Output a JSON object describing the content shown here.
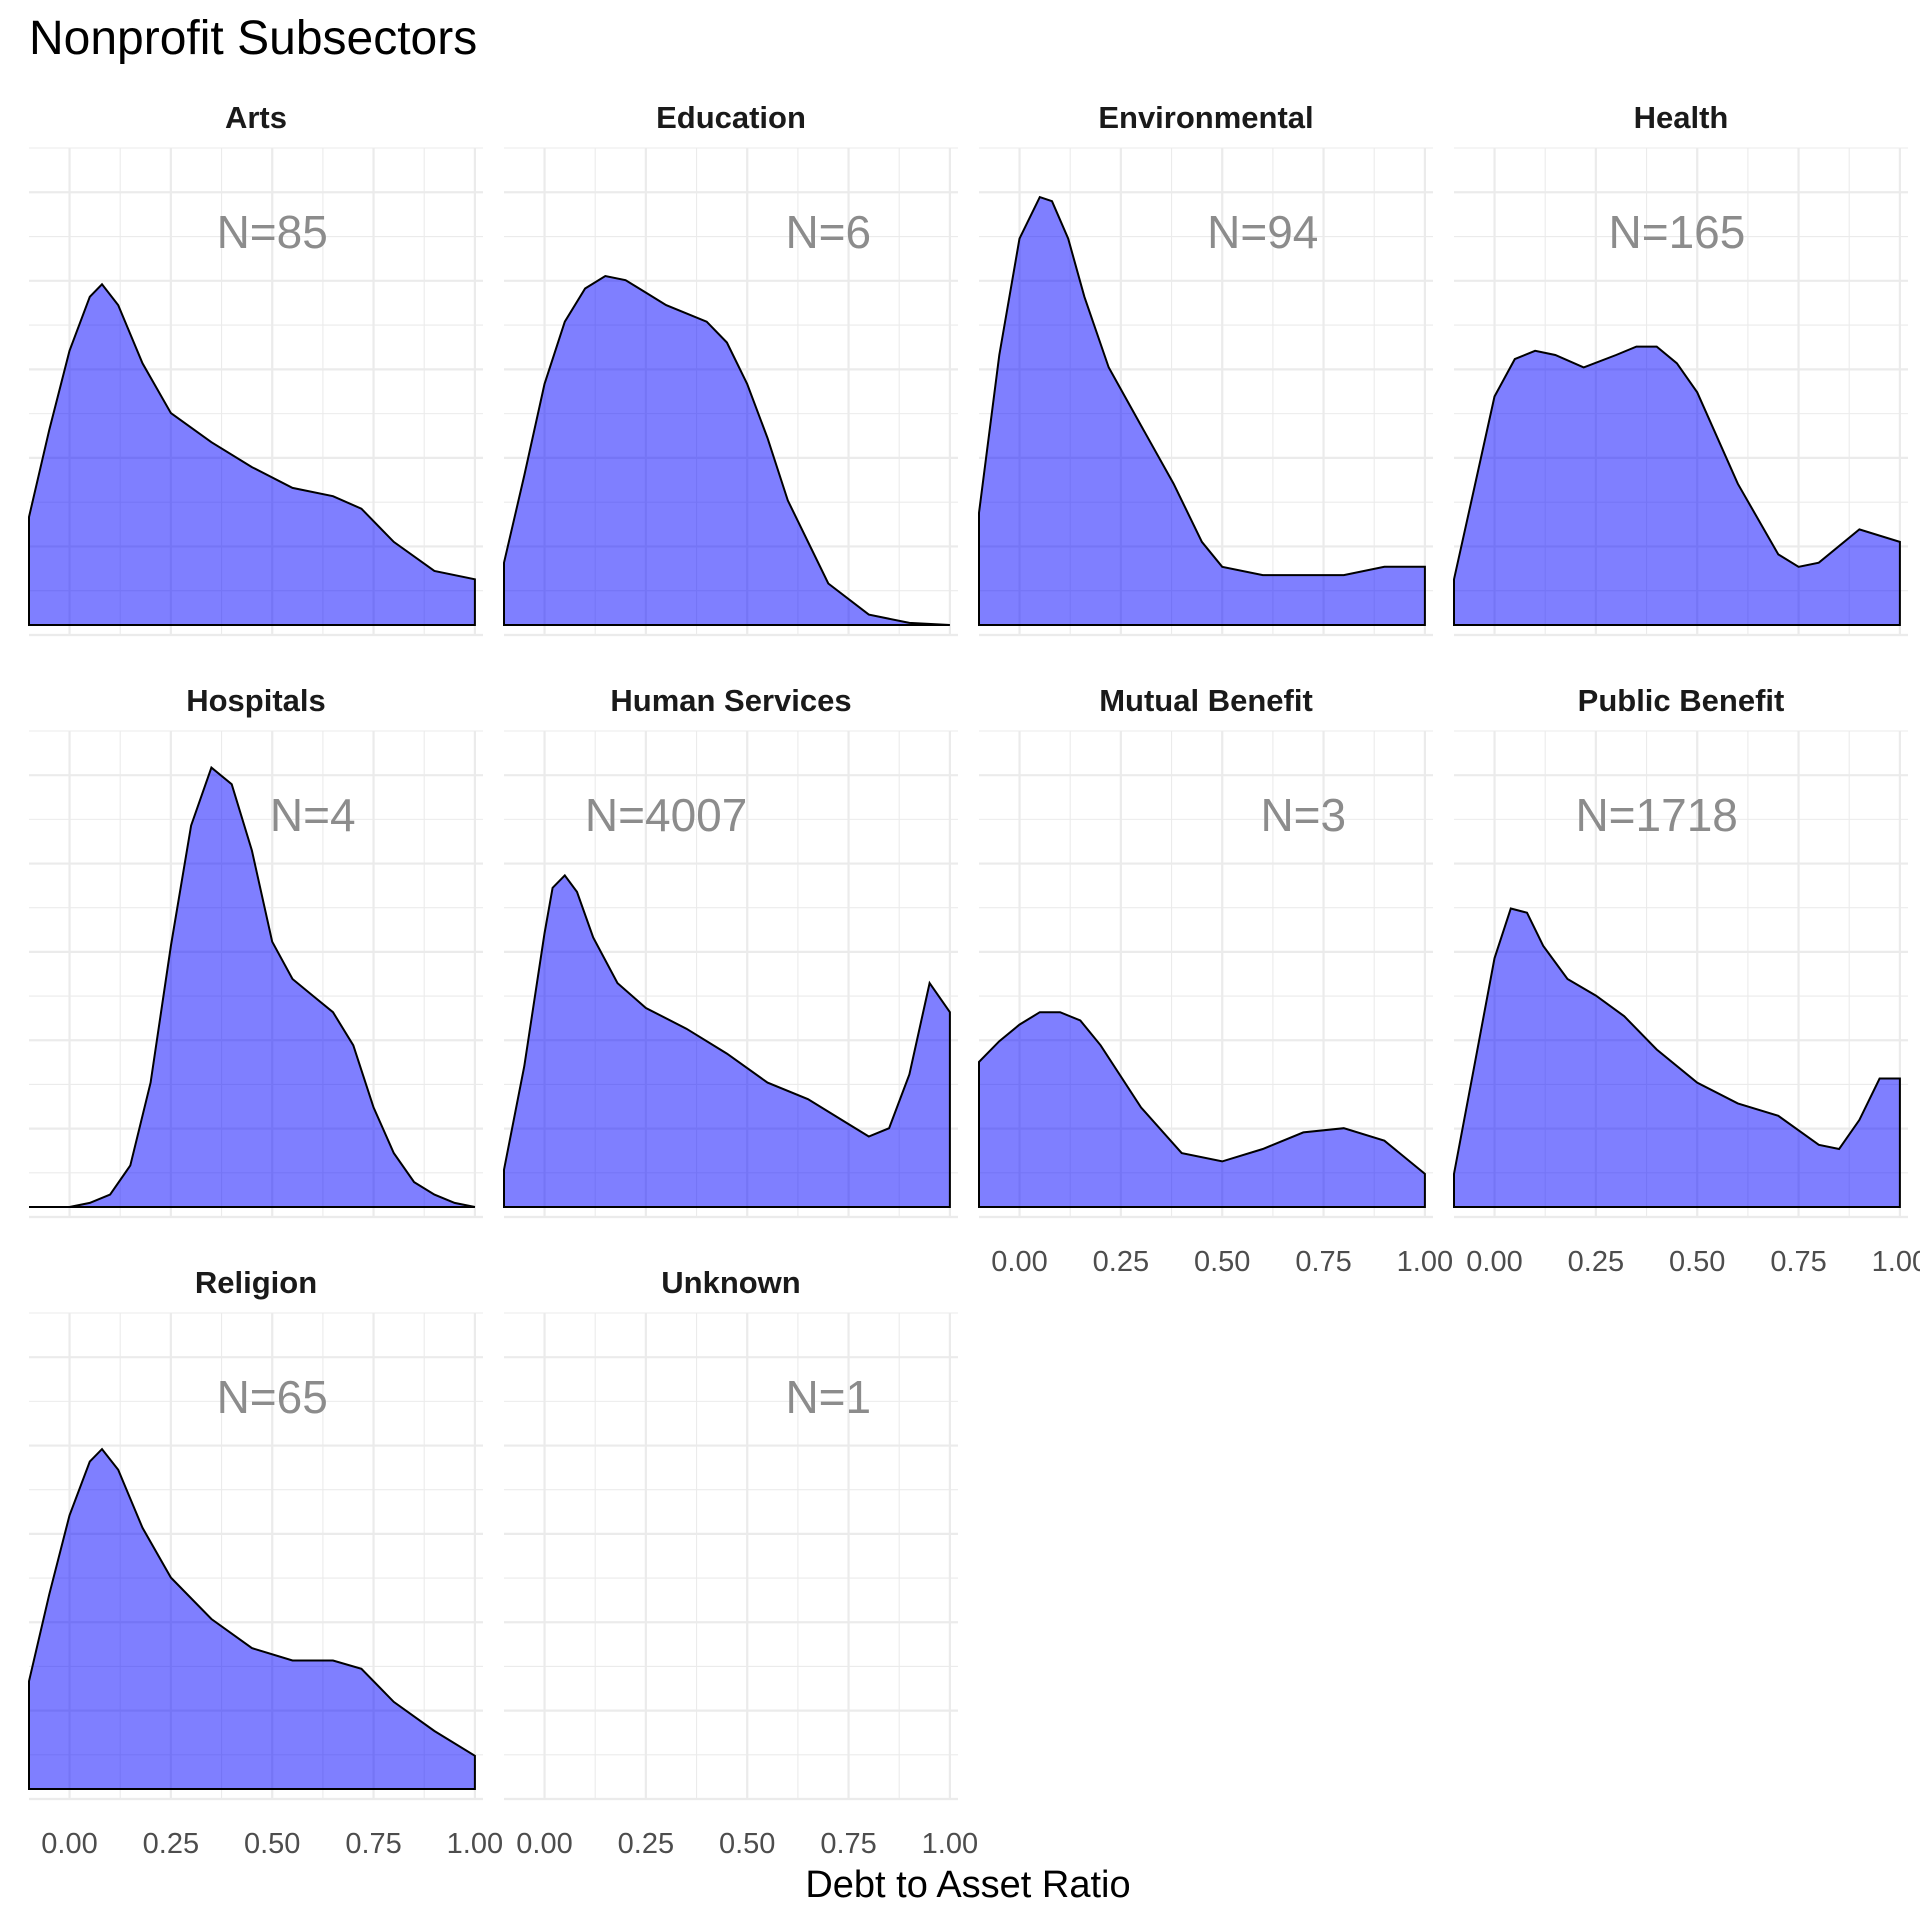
{
  "chart_data": {
    "type": "area",
    "title": "Nonprofit Subsectors",
    "xlabel": "Debt to Asset Ratio",
    "ylabel": "",
    "xlim": [
      -0.1,
      1.02
    ],
    "x_ticks": [
      "0.00",
      "0.25",
      "0.50",
      "0.75",
      "1.00"
    ],
    "x_tick_values": [
      0,
      0.25,
      0.5,
      0.75,
      1
    ],
    "fill_color": "#8080ff",
    "grid": true,
    "facets": [
      {
        "name": "Arts",
        "n_label": "N=85",
        "n_label_x": 0.5,
        "x": [
          -0.1,
          -0.05,
          0.0,
          0.05,
          0.08,
          0.12,
          0.18,
          0.25,
          0.35,
          0.45,
          0.55,
          0.65,
          0.72,
          0.8,
          0.9,
          1.0
        ],
        "y": [
          0.26,
          0.47,
          0.66,
          0.79,
          0.82,
          0.77,
          0.63,
          0.51,
          0.44,
          0.38,
          0.33,
          0.31,
          0.28,
          0.2,
          0.13,
          0.11
        ]
      },
      {
        "name": "Education",
        "n_label": "N=6",
        "n_label_x": 0.7,
        "x": [
          -0.1,
          -0.05,
          0.0,
          0.05,
          0.1,
          0.15,
          0.2,
          0.25,
          0.3,
          0.4,
          0.45,
          0.5,
          0.55,
          0.6,
          0.7,
          0.8,
          0.9,
          1.0
        ],
        "y": [
          0.15,
          0.36,
          0.58,
          0.73,
          0.81,
          0.84,
          0.83,
          0.8,
          0.77,
          0.73,
          0.68,
          0.58,
          0.45,
          0.3,
          0.1,
          0.025,
          0.005,
          0.0
        ]
      },
      {
        "name": "Environmental",
        "n_label": "N=94",
        "n_label_x": 0.6,
        "x": [
          -0.1,
          -0.05,
          0.0,
          0.05,
          0.08,
          0.12,
          0.16,
          0.22,
          0.3,
          0.38,
          0.45,
          0.5,
          0.6,
          0.7,
          0.8,
          0.9,
          1.0
        ],
        "y": [
          0.27,
          0.65,
          0.93,
          1.03,
          1.02,
          0.93,
          0.79,
          0.62,
          0.48,
          0.34,
          0.2,
          0.14,
          0.12,
          0.12,
          0.12,
          0.14,
          0.14
        ]
      },
      {
        "name": "Health",
        "n_label": "N=165",
        "n_label_x": 0.45,
        "x": [
          -0.1,
          -0.05,
          0.0,
          0.05,
          0.1,
          0.15,
          0.22,
          0.3,
          0.35,
          0.4,
          0.45,
          0.5,
          0.6,
          0.7,
          0.75,
          0.8,
          0.9,
          1.0
        ],
        "y": [
          0.11,
          0.33,
          0.55,
          0.64,
          0.66,
          0.65,
          0.62,
          0.65,
          0.67,
          0.67,
          0.63,
          0.56,
          0.34,
          0.17,
          0.14,
          0.15,
          0.23,
          0.2
        ]
      },
      {
        "name": "Hospitals",
        "n_label": "N=4",
        "n_label_x": 0.6,
        "x": [
          -0.1,
          -0.05,
          0.0,
          0.05,
          0.1,
          0.15,
          0.2,
          0.25,
          0.3,
          0.35,
          0.4,
          0.45,
          0.5,
          0.55,
          0.6,
          0.65,
          0.7,
          0.75,
          0.8,
          0.85,
          0.9,
          0.95,
          1.0
        ],
        "y": [
          0.0,
          0.0,
          0.0,
          0.01,
          0.03,
          0.1,
          0.3,
          0.63,
          0.92,
          1.06,
          1.02,
          0.86,
          0.64,
          0.55,
          0.51,
          0.47,
          0.39,
          0.24,
          0.13,
          0.06,
          0.03,
          0.01,
          0.0
        ]
      },
      {
        "name": "Human Services",
        "n_label": "N=4007",
        "n_label_x": 0.3,
        "x": [
          -0.1,
          -0.05,
          0.0,
          0.02,
          0.05,
          0.08,
          0.12,
          0.18,
          0.25,
          0.35,
          0.45,
          0.55,
          0.65,
          0.75,
          0.8,
          0.85,
          0.9,
          0.95,
          1.0
        ],
        "y": [
          0.09,
          0.34,
          0.66,
          0.77,
          0.8,
          0.76,
          0.65,
          0.54,
          0.48,
          0.43,
          0.37,
          0.3,
          0.26,
          0.2,
          0.17,
          0.19,
          0.32,
          0.54,
          0.47
        ]
      },
      {
        "name": "Mutual Benefit",
        "n_label": "N=3",
        "n_label_x": 0.7,
        "x": [
          -0.1,
          -0.05,
          0.0,
          0.05,
          0.1,
          0.15,
          0.2,
          0.3,
          0.4,
          0.5,
          0.6,
          0.7,
          0.8,
          0.9,
          1.0
        ],
        "y": [
          0.35,
          0.4,
          0.44,
          0.47,
          0.47,
          0.45,
          0.39,
          0.24,
          0.13,
          0.11,
          0.14,
          0.18,
          0.19,
          0.16,
          0.08
        ]
      },
      {
        "name": "Public Benefit",
        "n_label": "N=1718",
        "n_label_x": 0.4,
        "x": [
          -0.1,
          -0.05,
          0.0,
          0.04,
          0.08,
          0.12,
          0.18,
          0.25,
          0.32,
          0.4,
          0.5,
          0.6,
          0.7,
          0.8,
          0.85,
          0.9,
          0.95,
          1.0
        ],
        "y": [
          0.08,
          0.34,
          0.6,
          0.72,
          0.71,
          0.63,
          0.55,
          0.51,
          0.46,
          0.38,
          0.3,
          0.25,
          0.22,
          0.15,
          0.14,
          0.21,
          0.31,
          0.31
        ]
      },
      {
        "name": "Religion",
        "n_label": "N=65",
        "n_label_x": 0.5,
        "x": [
          -0.1,
          -0.05,
          0.0,
          0.05,
          0.08,
          0.12,
          0.18,
          0.25,
          0.35,
          0.45,
          0.55,
          0.65,
          0.72,
          0.8,
          0.9,
          1.0
        ],
        "y": [
          0.26,
          0.47,
          0.66,
          0.79,
          0.82,
          0.77,
          0.63,
          0.51,
          0.41,
          0.34,
          0.31,
          0.31,
          0.29,
          0.21,
          0.14,
          0.08
        ]
      },
      {
        "name": "Unknown",
        "n_label": "N=1",
        "n_label_x": 0.7,
        "x": [],
        "y": []
      }
    ]
  }
}
